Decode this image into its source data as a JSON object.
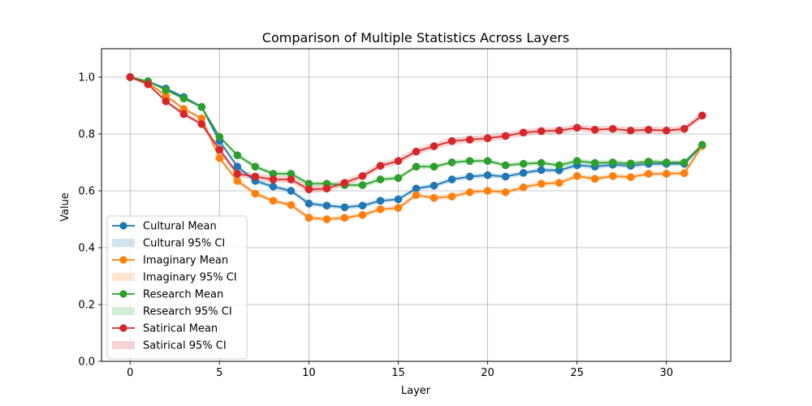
{
  "chart_data": {
    "type": "line",
    "title": "Comparison of Multiple Statistics Across Layers",
    "xlabel": "Layer",
    "ylabel": "Value",
    "xlim": [
      -1.6,
      33.6
    ],
    "ylim": [
      0.0,
      1.1
    ],
    "xticks": [
      0,
      5,
      10,
      15,
      20,
      25,
      30
    ],
    "yticks": [
      0.0,
      0.2,
      0.4,
      0.6,
      0.8,
      1.0
    ],
    "xtick_labels": [
      "0",
      "5",
      "10",
      "15",
      "20",
      "25",
      "30"
    ],
    "ytick_labels": [
      "0.0",
      "0.2",
      "0.4",
      "0.6",
      "0.8",
      "1.0"
    ],
    "grid": true,
    "legend_position": "lower-left",
    "x": [
      0,
      1,
      2,
      3,
      4,
      5,
      6,
      7,
      8,
      9,
      10,
      11,
      12,
      13,
      14,
      15,
      16,
      17,
      18,
      19,
      20,
      21,
      22,
      23,
      24,
      25,
      26,
      27,
      28,
      29,
      30,
      31,
      32
    ],
    "series": [
      {
        "name": "Cultural Mean",
        "ci_name": "Cultural 95% CI",
        "color": "#1f77b4",
        "values": [
          1.0,
          0.985,
          0.96,
          0.93,
          0.895,
          0.775,
          0.685,
          0.635,
          0.615,
          0.6,
          0.555,
          0.548,
          0.542,
          0.548,
          0.565,
          0.57,
          0.608,
          0.618,
          0.64,
          0.65,
          0.655,
          0.65,
          0.663,
          0.673,
          0.672,
          0.69,
          0.685,
          0.692,
          0.688,
          0.695,
          0.695,
          0.695,
          0.76
        ],
        "ci_halfwidth": [
          0,
          0.004,
          0.005,
          0.005,
          0.006,
          0.008,
          0.009,
          0.009,
          0.009,
          0.009,
          0.009,
          0.009,
          0.009,
          0.009,
          0.009,
          0.009,
          0.009,
          0.009,
          0.009,
          0.009,
          0.009,
          0.009,
          0.009,
          0.009,
          0.009,
          0.009,
          0.009,
          0.009,
          0.009,
          0.009,
          0.009,
          0.009,
          0.009
        ]
      },
      {
        "name": "Imaginary Mean",
        "ci_name": "Imaginary 95% CI",
        "color": "#ff7f0e",
        "values": [
          1.0,
          0.98,
          0.935,
          0.888,
          0.855,
          0.715,
          0.635,
          0.59,
          0.565,
          0.55,
          0.505,
          0.5,
          0.505,
          0.515,
          0.535,
          0.54,
          0.585,
          0.575,
          0.58,
          0.595,
          0.6,
          0.595,
          0.612,
          0.625,
          0.628,
          0.652,
          0.642,
          0.652,
          0.648,
          0.66,
          0.66,
          0.662,
          0.758
        ],
        "ci_halfwidth": [
          0,
          0.004,
          0.005,
          0.005,
          0.006,
          0.008,
          0.009,
          0.009,
          0.009,
          0.009,
          0.009,
          0.009,
          0.009,
          0.009,
          0.009,
          0.009,
          0.009,
          0.009,
          0.009,
          0.009,
          0.009,
          0.009,
          0.009,
          0.009,
          0.009,
          0.009,
          0.009,
          0.009,
          0.009,
          0.009,
          0.009,
          0.009,
          0.009
        ]
      },
      {
        "name": "Research Mean",
        "ci_name": "Research 95% CI",
        "color": "#2ca02c",
        "values": [
          1.0,
          0.985,
          0.955,
          0.925,
          0.895,
          0.79,
          0.725,
          0.685,
          0.66,
          0.66,
          0.625,
          0.625,
          0.62,
          0.62,
          0.64,
          0.645,
          0.685,
          0.685,
          0.7,
          0.705,
          0.705,
          0.69,
          0.695,
          0.698,
          0.69,
          0.705,
          0.698,
          0.7,
          0.696,
          0.703,
          0.7,
          0.7,
          0.762
        ],
        "ci_halfwidth": [
          0,
          0.004,
          0.005,
          0.005,
          0.006,
          0.008,
          0.009,
          0.009,
          0.009,
          0.009,
          0.009,
          0.009,
          0.009,
          0.009,
          0.009,
          0.009,
          0.009,
          0.009,
          0.009,
          0.009,
          0.009,
          0.009,
          0.009,
          0.009,
          0.009,
          0.009,
          0.009,
          0.009,
          0.009,
          0.009,
          0.009,
          0.009,
          0.009
        ]
      },
      {
        "name": "Satirical Mean",
        "ci_name": "Satirical 95% CI",
        "color": "#d62728",
        "values": [
          1.0,
          0.975,
          0.915,
          0.87,
          0.835,
          0.745,
          0.66,
          0.65,
          0.64,
          0.64,
          0.605,
          0.608,
          0.628,
          0.652,
          0.688,
          0.705,
          0.738,
          0.757,
          0.775,
          0.78,
          0.785,
          0.793,
          0.805,
          0.81,
          0.812,
          0.822,
          0.815,
          0.818,
          0.812,
          0.815,
          0.812,
          0.818,
          0.865
        ],
        "ci_halfwidth": [
          0,
          0.005,
          0.006,
          0.007,
          0.008,
          0.011,
          0.012,
          0.012,
          0.012,
          0.012,
          0.012,
          0.012,
          0.012,
          0.012,
          0.012,
          0.012,
          0.012,
          0.012,
          0.012,
          0.012,
          0.012,
          0.012,
          0.012,
          0.012,
          0.012,
          0.012,
          0.012,
          0.012,
          0.012,
          0.012,
          0.012,
          0.012,
          0.012
        ]
      }
    ]
  }
}
